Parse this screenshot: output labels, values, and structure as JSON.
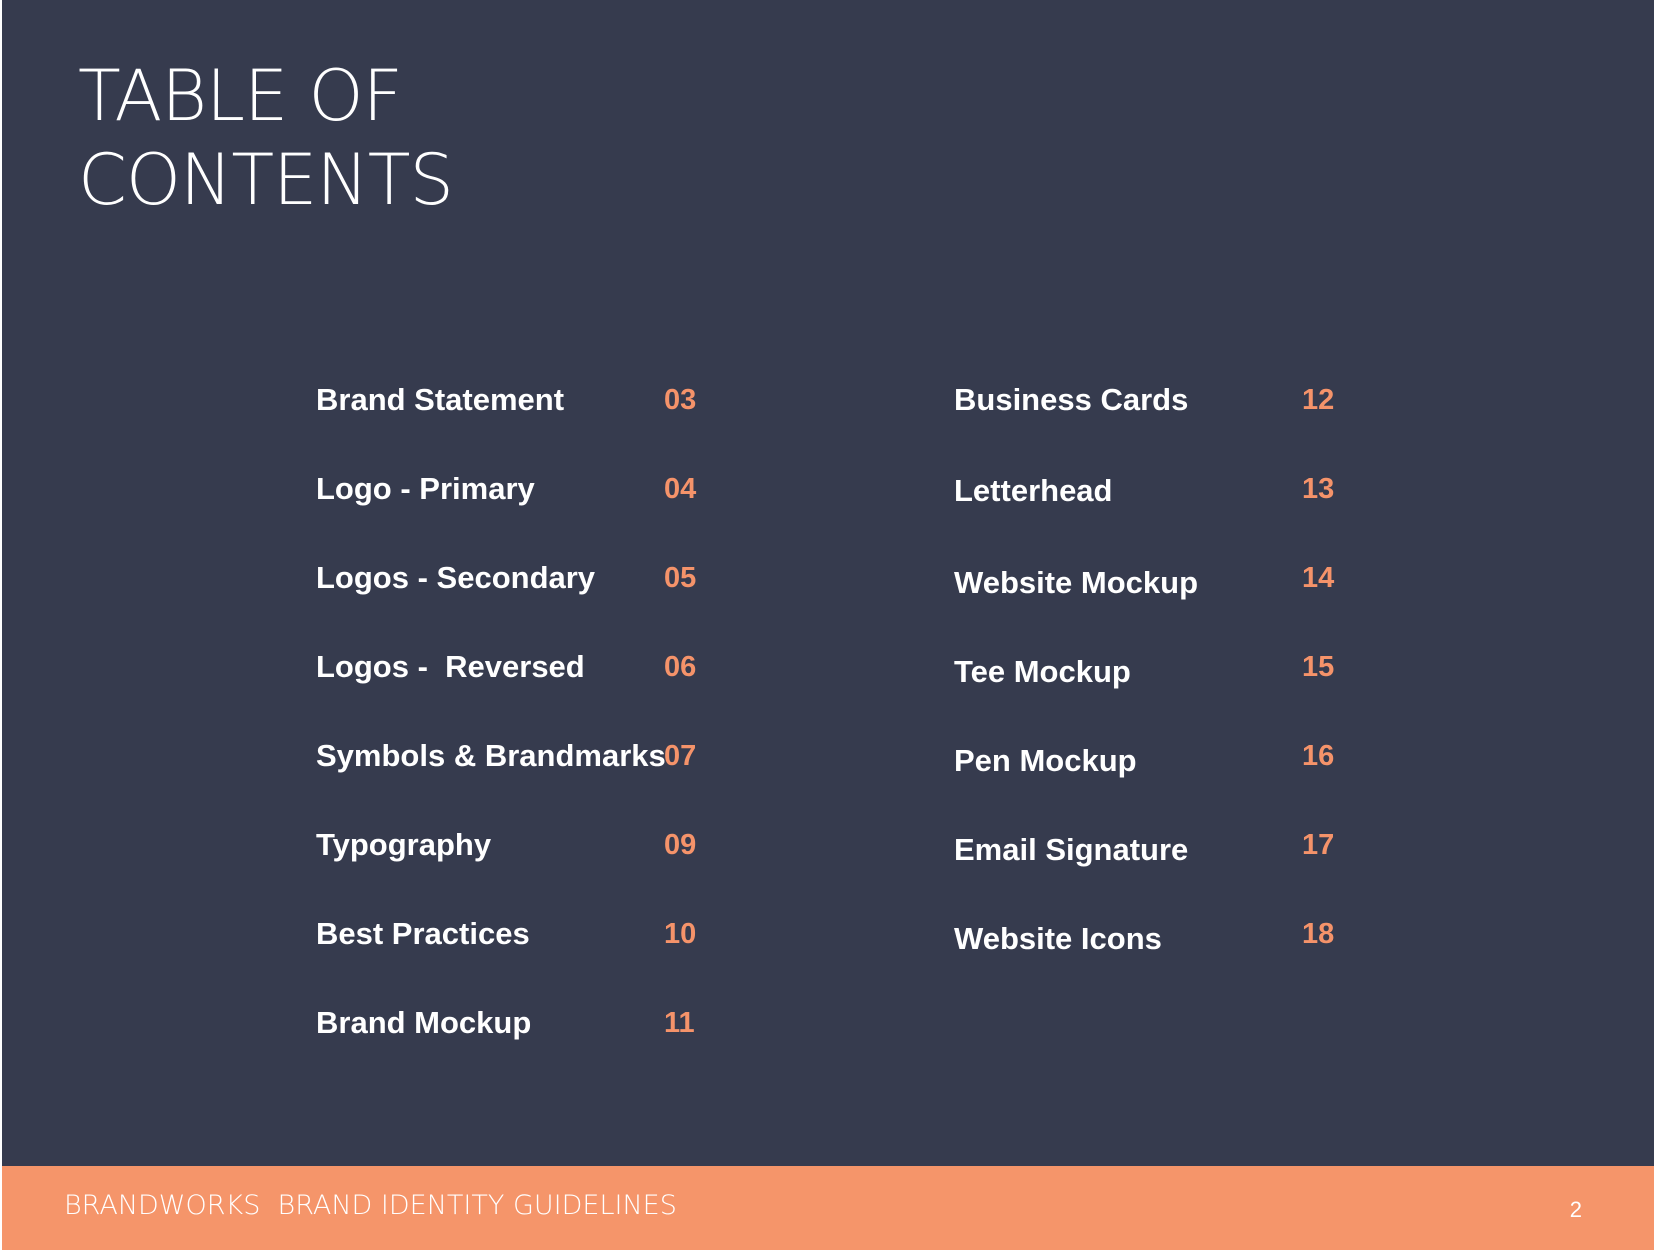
{
  "title": {
    "line1": "TABLE OF",
    "line2": "CONTENTS"
  },
  "toc": {
    "left": [
      {
        "label": "Brand Statement",
        "page": "03"
      },
      {
        "label": "Logo - Primary",
        "page": "04"
      },
      {
        "label": "Logos - Secondary",
        "page": "05"
      },
      {
        "label": "Logos -  Reversed",
        "page": "06"
      },
      {
        "label": "Symbols & Brandmarks",
        "page": "07"
      },
      {
        "label": "Typography",
        "page": "09"
      },
      {
        "label": "Best Practices",
        "page": "10"
      },
      {
        "label": "Brand Mockup",
        "page": "11"
      }
    ],
    "right": [
      {
        "label": "Business Cards",
        "page": "12"
      },
      {
        "label": "Letterhead",
        "page": "13"
      },
      {
        "label": "Website Mockup",
        "page": "14"
      },
      {
        "label": "Tee Mockup",
        "page": "15"
      },
      {
        "label": "Pen Mockup",
        "page": "16"
      },
      {
        "label": "Email Signature",
        "page": "17"
      },
      {
        "label": "Website Icons",
        "page": "18"
      }
    ]
  },
  "footer": {
    "title": "BRANDWORKS  BRAND IDENTITY GUIDELINES",
    "page_number": "2"
  },
  "colors": {
    "background": "#363b4e",
    "accent": "#f5936a",
    "text": "#ffffff"
  }
}
